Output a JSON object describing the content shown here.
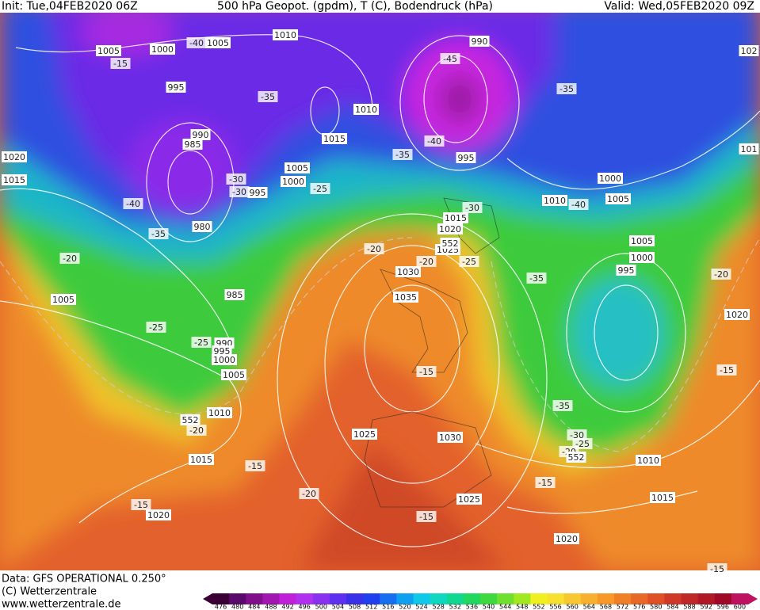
{
  "header": {
    "init": "Init: Tue,04FEB2020 06Z",
    "title": "500 hPa Geopot. (gpdm), T (C), Bodendruck (hPa)",
    "valid": "Valid: Wed,05FEB2020 09Z"
  },
  "isobar_labels": [
    "1010",
    "1005",
    "1005",
    "1000",
    "995",
    "990",
    "102",
    "1010",
    "1015",
    "990",
    "985",
    "1005",
    "1000",
    "995",
    "995",
    "1000",
    "1010",
    "1005",
    "1015",
    "1020",
    "1025",
    "1030",
    "1035",
    "1020",
    "1015",
    "1005",
    "980",
    "985",
    "990",
    "995",
    "1000",
    "1005",
    "1010",
    "1015",
    "1020",
    "1025",
    "1030",
    "1025",
    "1005",
    "1000",
    "995",
    "1020",
    "1010",
    "1015",
    "1020",
    "101"
  ],
  "temperature_labels": [
    "-15",
    "-40",
    "-35",
    "-45",
    "-35",
    "-40",
    "-35",
    "-25",
    "-30",
    "-30",
    "-40",
    "-35",
    "-20",
    "-30",
    "-40",
    "-20",
    "-20",
    "-25",
    "-35",
    "-20",
    "-25",
    "-25",
    "-15",
    "-15",
    "-35",
    "-30",
    "-25",
    "-20",
    "-20",
    "-15",
    "-20",
    "-15",
    "-15",
    "-15",
    "-15"
  ],
  "geopotential_labels": [
    "552",
    "552",
    "552"
  ],
  "footer": {
    "data_source": "Data: GFS OPERATIONAL 0.250°",
    "copyright": "(C) Wetterzentrale",
    "url": "www.wetterzentrale.de"
  },
  "colorbar": {
    "labels": [
      476,
      480,
      484,
      488,
      492,
      496,
      500,
      504,
      508,
      512,
      516,
      520,
      524,
      528,
      532,
      536,
      540,
      544,
      548,
      552,
      556,
      560,
      564,
      568,
      572,
      576,
      580,
      584,
      588,
      592,
      596,
      600
    ]
  }
}
